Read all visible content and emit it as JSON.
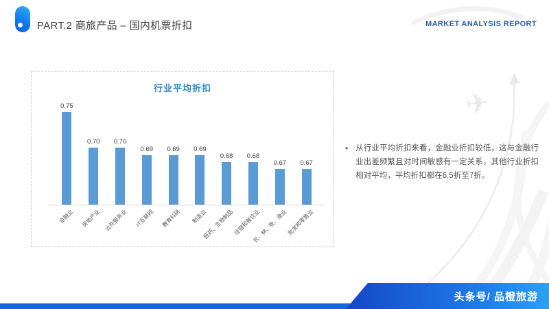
{
  "header": {
    "part_label": "PART.2 商旅产品 – 国内机票折扣",
    "report_label": "MARKET ANALYSIS REPORT"
  },
  "chart_data": {
    "type": "bar",
    "title": "行业平均折扣",
    "categories": [
      "金融业",
      "房地产业",
      "公共服务业",
      "IT互联网",
      "教育科研",
      "制造业",
      "医药、生物制品",
      "住宿和餐饮业",
      "农、林、牧、渔业",
      "批发和零售业"
    ],
    "values": [
      0.75,
      0.7,
      0.7,
      0.69,
      0.69,
      0.69,
      0.68,
      0.68,
      0.67,
      0.67
    ],
    "value_labels": [
      "0.75",
      "0.70",
      "0.70",
      "0.69",
      "0.69",
      "0.69",
      "0.68",
      "0.68",
      "0.67",
      "0.67"
    ],
    "xlabel": "",
    "ylabel": "",
    "ylim": [
      0.62,
      0.76
    ],
    "grid": false,
    "legend": "none",
    "bar_color": "#5B9BD5"
  },
  "insight": {
    "bullet": "•",
    "text": "从行业平均折扣来看，金融业折扣较低，这与金融行业出差频繁且对时间敏感有一定关系，其他行业折扣相对平均，平均折扣都在6.5折至7折。"
  },
  "footer": {
    "source_label": "头条号/ 品橙旅游"
  },
  "colors": {
    "bar_blue": "#5B9BD5",
    "chart_title_blue": "#2E86C8",
    "report_blue": "#2A5CAB",
    "footer_blue_start": "#1547C8",
    "footer_blue_end": "#2BA0F5",
    "accent_strip_blue": "#1565DB"
  },
  "icons": {
    "logo": "capsule-logo-icon",
    "plane": "✈"
  }
}
